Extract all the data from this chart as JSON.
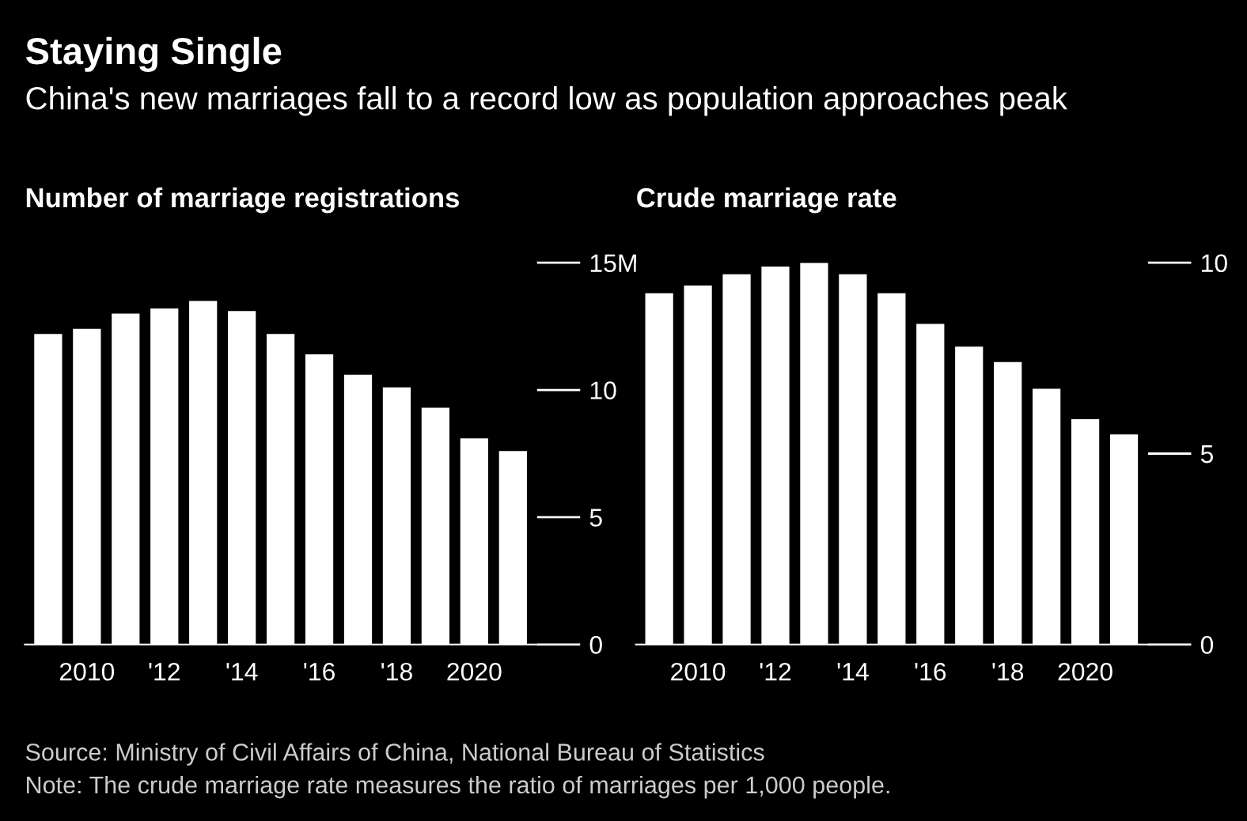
{
  "chart_data": [
    {
      "type": "bar",
      "title": "Number of marriage registrations",
      "annotations": [
        "Staying Single",
        "China's new marriages fall to a record low as population approaches peak",
        "Source: Ministry of Civil Affairs of China, National Bureau of Statistics",
        "Note: The crude marriage rate measures the ratio of marriages per 1,000 people."
      ],
      "categories": [
        null,
        "2010",
        null,
        "'12",
        null,
        "'14",
        null,
        "'16",
        null,
        "'18",
        null,
        "2020",
        null
      ],
      "values": [
        12.2,
        12.4,
        13.0,
        13.2,
        13.5,
        13.1,
        12.2,
        11.4,
        10.6,
        10.1,
        9.3,
        8.1,
        7.6
      ],
      "color": "#ffffff",
      "ylim": [
        0,
        15
      ],
      "yticks": [
        0,
        5,
        10,
        {
          "value": 15,
          "label": "15M"
        }
      ],
      "grid": false,
      "legend": false
    },
    {
      "type": "bar",
      "title": "Crude marriage rate",
      "categories": [
        null,
        "2010",
        null,
        "'12",
        null,
        "'14",
        null,
        "'16",
        null,
        "'18",
        null,
        "2020",
        null
      ],
      "values": [
        9.2,
        9.4,
        9.7,
        9.9,
        10.0,
        9.7,
        9.2,
        8.4,
        7.8,
        7.4,
        6.7,
        5.9,
        5.5
      ],
      "color": "#ffffff",
      "ylim": [
        0,
        10
      ],
      "yticks": [
        0,
        5,
        10
      ],
      "grid": false,
      "legend": false
    }
  ]
}
